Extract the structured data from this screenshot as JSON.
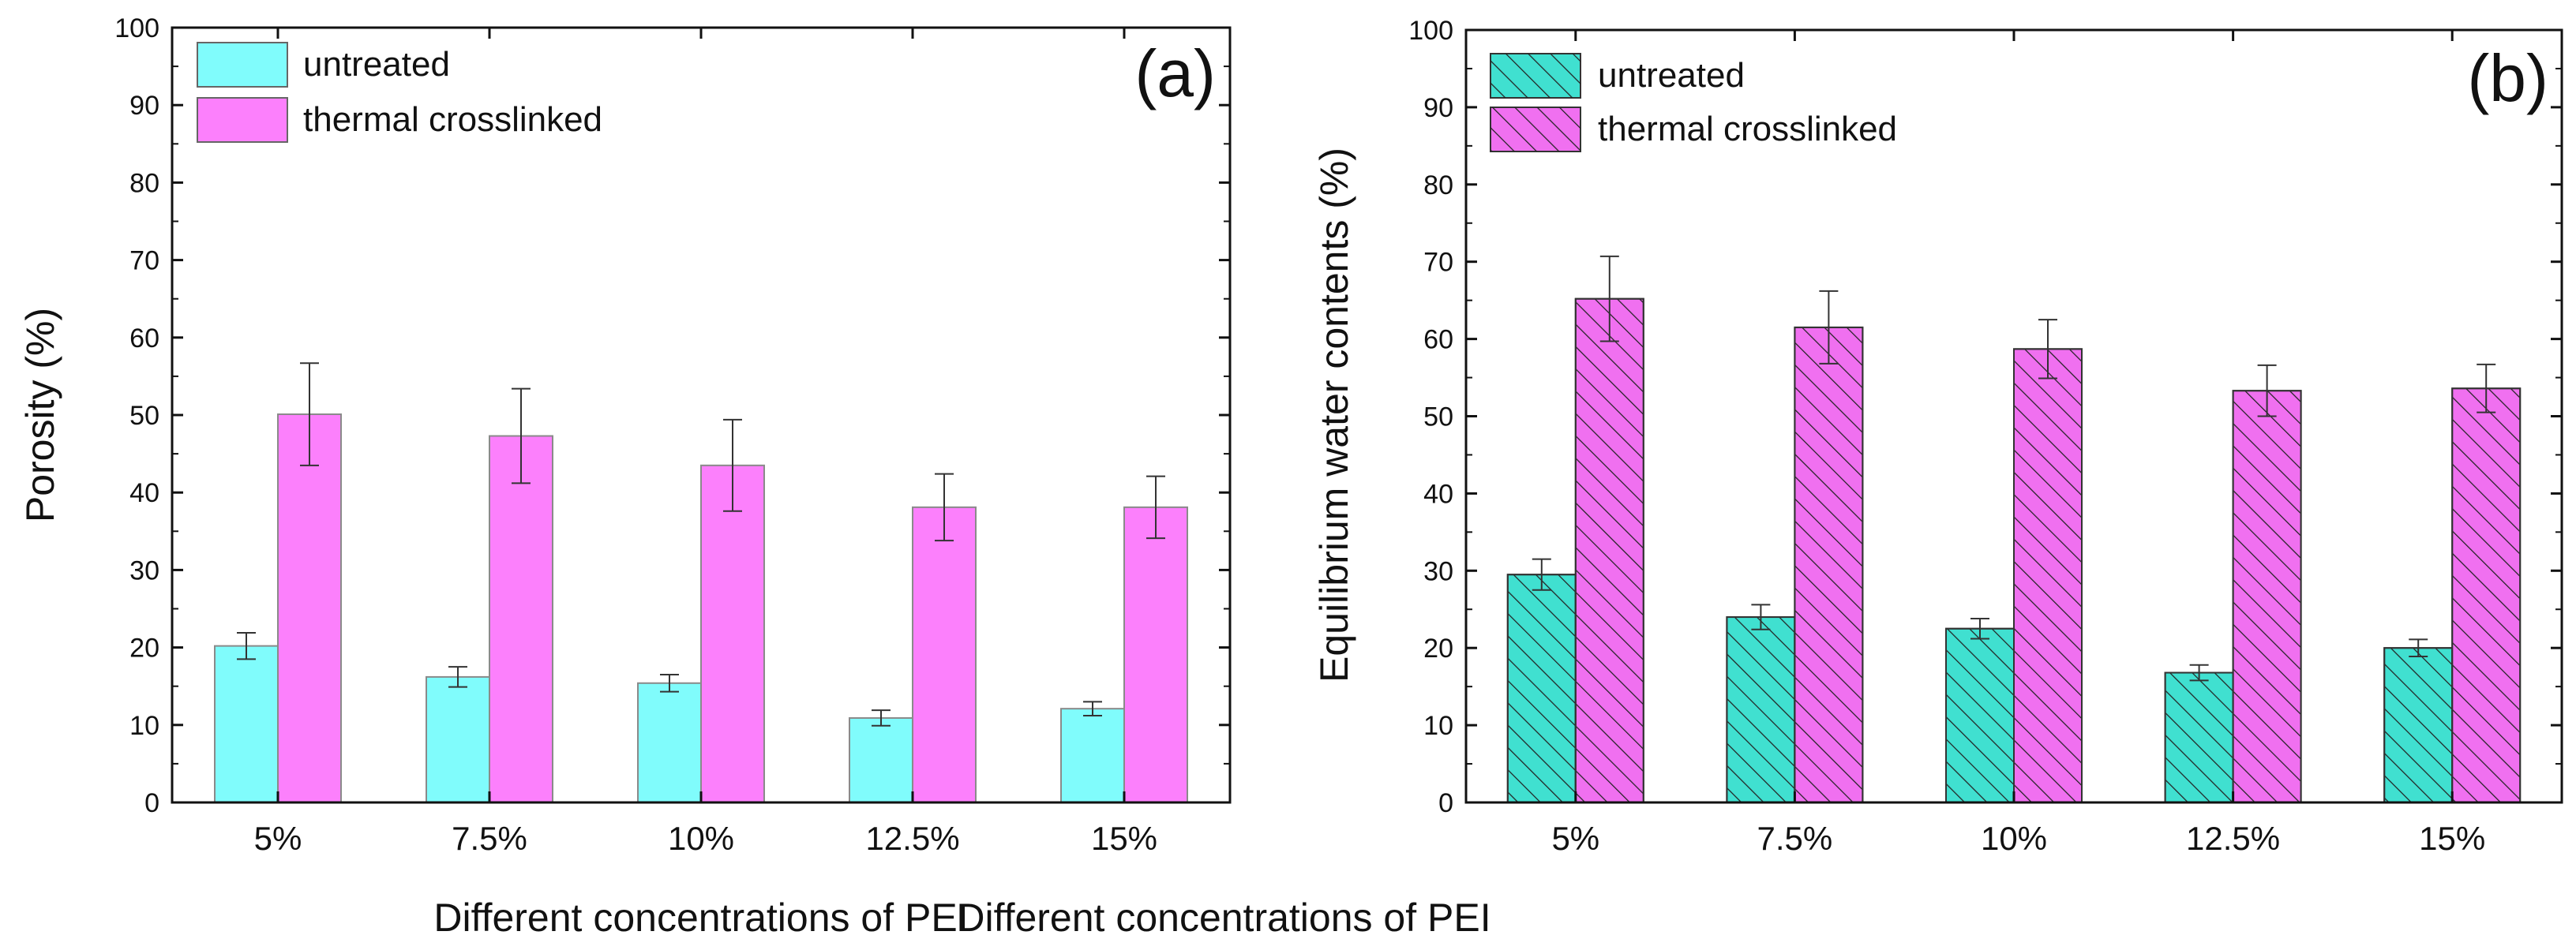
{
  "chart_data": [
    {
      "type": "bar",
      "panel_label": "(a)",
      "title": "",
      "xlabel": "Different concentrations of PEI",
      "ylabel": "Porosity (%)",
      "ylim": [
        0,
        100
      ],
      "yticks": [
        "0",
        "10",
        "20",
        "30",
        "40",
        "50",
        "60",
        "70",
        "80",
        "90",
        "100"
      ],
      "categories": [
        "5%",
        "7.5%",
        "10%",
        "12.5%",
        "15%"
      ],
      "legend_position": "top-left",
      "series": [
        {
          "name": "untreated",
          "values": [
            20.2,
            16.2,
            15.4,
            10.9,
            12.1
          ],
          "errors": [
            1.7,
            1.3,
            1.1,
            1.0,
            0.9
          ],
          "color": "#80FCFC",
          "hatch": false
        },
        {
          "name": "thermal crosslinked",
          "values": [
            50.1,
            47.3,
            43.5,
            38.1,
            38.1
          ],
          "errors": [
            6.6,
            6.1,
            5.9,
            4.3,
            4.0
          ],
          "color": "#FC80FC",
          "hatch": false
        }
      ]
    },
    {
      "type": "bar",
      "panel_label": "(b)",
      "title": "",
      "xlabel": "Different concentrations of PEI",
      "ylabel": "Equilibrium water contents (%)",
      "ylim": [
        0,
        100
      ],
      "yticks": [
        "0",
        "10",
        "20",
        "30",
        "40",
        "50",
        "60",
        "70",
        "80",
        "90",
        "100"
      ],
      "categories": [
        "5%",
        "7.5%",
        "10%",
        "12.5%",
        "15%"
      ],
      "legend_position": "top-left",
      "series": [
        {
          "name": "untreated",
          "values": [
            29.5,
            24.0,
            22.5,
            16.8,
            20.0
          ],
          "errors": [
            2.0,
            1.6,
            1.3,
            1.0,
            1.1
          ],
          "color": "#40E0D0",
          "hatch": true
        },
        {
          "name": "thermal crosslinked",
          "values": [
            65.2,
            61.5,
            58.7,
            53.3,
            53.6
          ],
          "errors": [
            5.5,
            4.7,
            3.8,
            3.3,
            3.1
          ],
          "color": "#F070F0",
          "hatch": true
        }
      ]
    }
  ]
}
